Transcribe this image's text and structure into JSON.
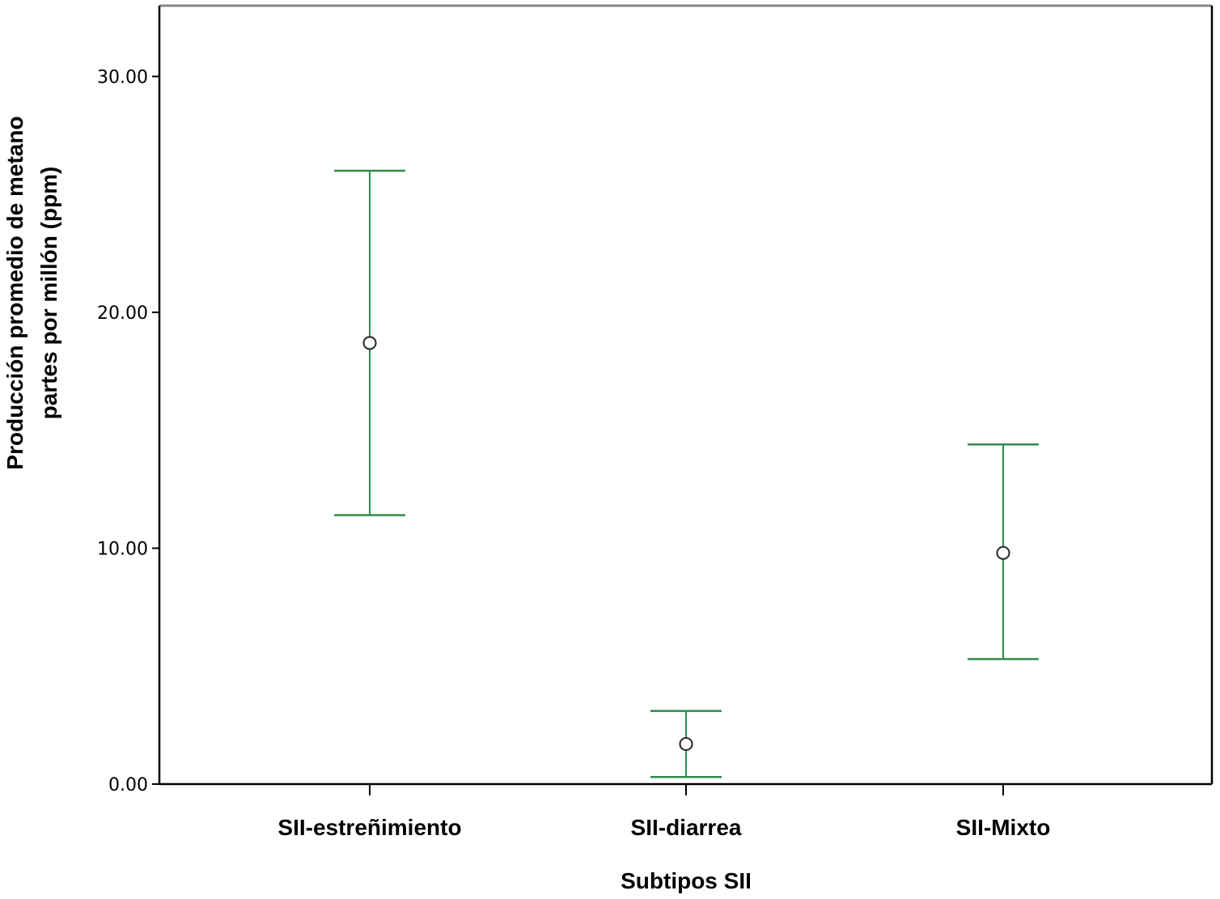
{
  "chart_data": {
    "type": "errorbar",
    "title": "",
    "xlabel": "Subtipos SII",
    "ylabel_lines": [
      "Producción promedio de metano",
      "partes por millón (ppm)"
    ],
    "ylim": [
      0,
      33
    ],
    "yticks": [
      "0.00",
      "10.00",
      "20.00",
      "30.00"
    ],
    "ytick_values": [
      0,
      10,
      20,
      30
    ],
    "categories": [
      "SII-estreñimiento",
      "SII-diarrea",
      "SII-Mixto"
    ],
    "mean": [
      18.7,
      1.7,
      9.8
    ],
    "lower": [
      11.4,
      0.3,
      5.3
    ],
    "upper": [
      26.0,
      3.1,
      14.4
    ],
    "grid": false,
    "colors": {
      "errorbar": "#2e8b4a",
      "marker": "#333333",
      "frame": "#000000"
    }
  }
}
